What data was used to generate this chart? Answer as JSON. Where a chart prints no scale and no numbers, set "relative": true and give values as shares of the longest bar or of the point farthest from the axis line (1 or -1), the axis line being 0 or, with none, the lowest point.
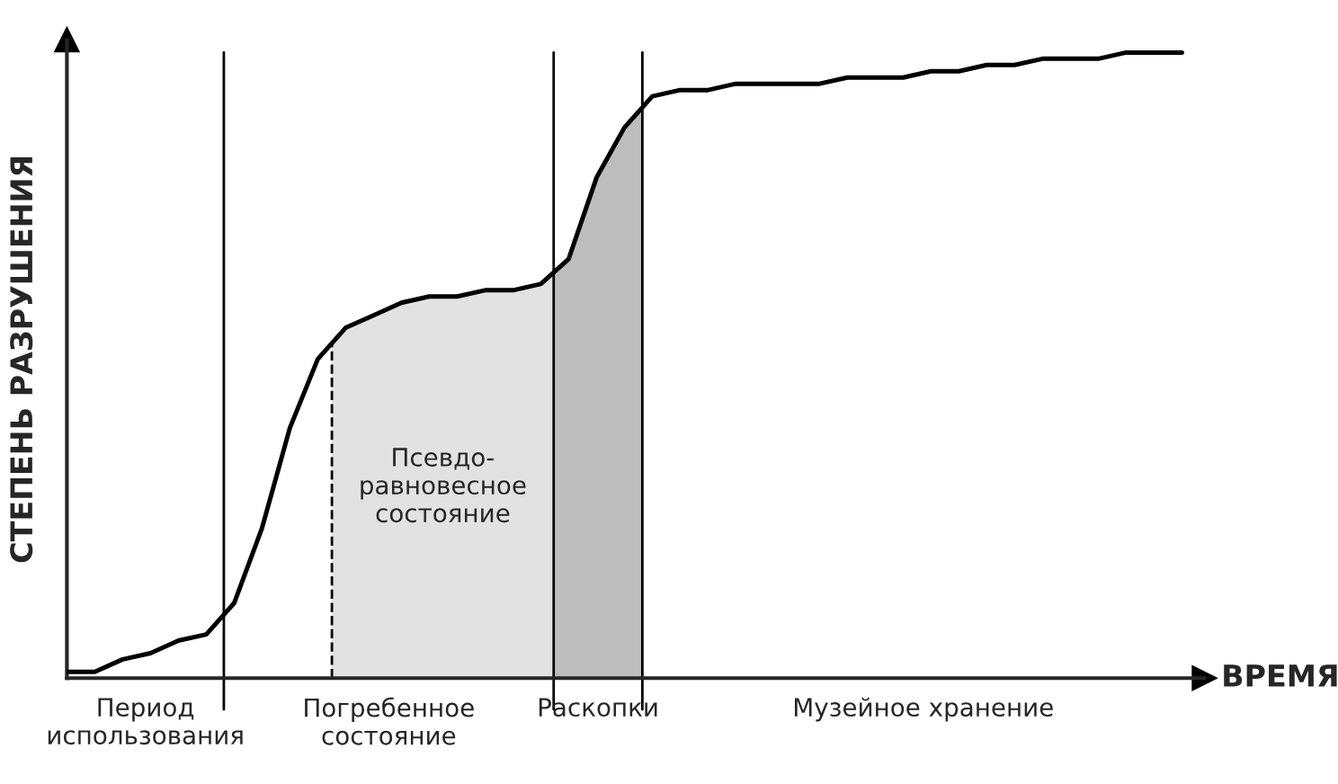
{
  "chart_data": {
    "type": "line",
    "relative": true,
    "xlabel": "ВРЕМЯ",
    "ylabel": "СТЕПЕНЬ РАЗРУШЕНИЯ",
    "categories": [
      null,
      null,
      null,
      null,
      null,
      null,
      null,
      null,
      null,
      null,
      null,
      null,
      null,
      null,
      null,
      null,
      null,
      null,
      null,
      null,
      null,
      null,
      null,
      null,
      null,
      null,
      null,
      null,
      null,
      null,
      null,
      null,
      null,
      null,
      null,
      null,
      null,
      null,
      null,
      null,
      null
    ],
    "series": [
      {
        "color": "#000000",
        "values": [
          0.01,
          0.01,
          0.03,
          0.04,
          0.06,
          0.07,
          0.12,
          0.24,
          0.4,
          0.51,
          0.56,
          0.58,
          0.6,
          0.61,
          0.61,
          0.62,
          0.62,
          0.63,
          0.67,
          0.8,
          0.88,
          0.93,
          0.94,
          0.94,
          0.95,
          0.95,
          0.95,
          0.95,
          0.96,
          0.96,
          0.96,
          0.97,
          0.97,
          0.98,
          0.98,
          0.99,
          0.99,
          0.99,
          1.0,
          1.0,
          1.0
        ]
      }
    ],
    "marker": "none",
    "line_style": "solid",
    "legend": false,
    "annotations": [
      "Псевдо-\nравновесное\nсостояние",
      "Период\nиспользования",
      "Погребенное\nсостояние",
      "Раскопки",
      "Музейное хранение"
    ]
  }
}
